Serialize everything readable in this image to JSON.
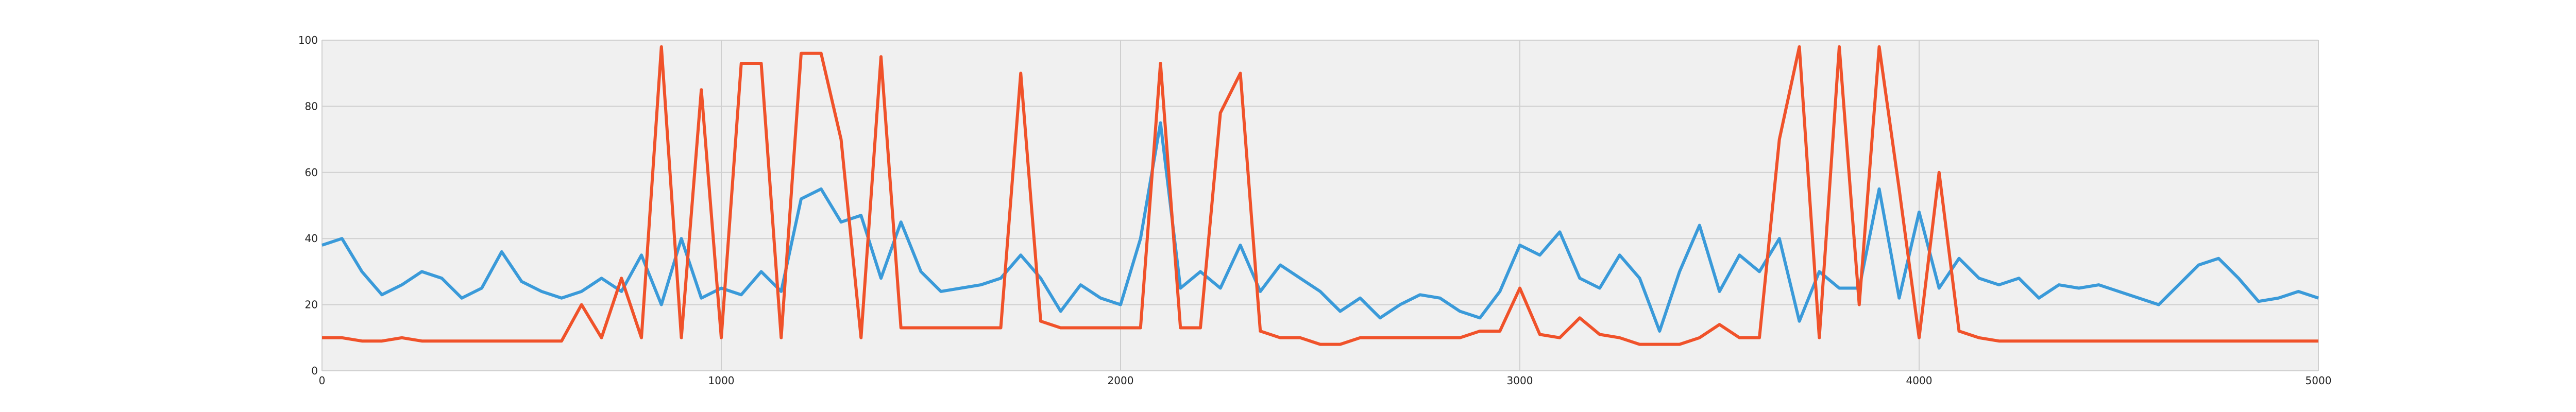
{
  "chart_data": {
    "type": "line",
    "x": [
      0,
      50,
      100,
      150,
      200,
      250,
      300,
      350,
      400,
      450,
      500,
      550,
      600,
      650,
      700,
      750,
      800,
      850,
      900,
      950,
      1000,
      1050,
      1100,
      1150,
      1200,
      1250,
      1300,
      1350,
      1400,
      1450,
      1500,
      1550,
      1600,
      1650,
      1700,
      1750,
      1800,
      1850,
      1900,
      1950,
      2000,
      2050,
      2100,
      2150,
      2200,
      2250,
      2300,
      2350,
      2400,
      2450,
      2500,
      2550,
      2600,
      2650,
      2700,
      2750,
      2800,
      2850,
      2900,
      2950,
      3000,
      3050,
      3100,
      3150,
      3200,
      3250,
      3300,
      3350,
      3400,
      3450,
      3500,
      3550,
      3600,
      3650,
      3700,
      3750,
      3800,
      3850,
      3900,
      3950,
      4000,
      4050,
      4100,
      4150,
      4200,
      4250,
      4300,
      4350,
      4400,
      4450,
      4500,
      4550,
      4600,
      4650,
      4700,
      4750,
      4800,
      4850,
      4900,
      4950,
      5000
    ],
    "series": [
      {
        "color": "#3a9ad9",
        "values": [
          38,
          40,
          30,
          23,
          26,
          30,
          28,
          22,
          25,
          36,
          27,
          24,
          22,
          24,
          28,
          24,
          35,
          20,
          40,
          22,
          25,
          23,
          30,
          24,
          52,
          55,
          45,
          47,
          28,
          45,
          30,
          24,
          25,
          26,
          28,
          35,
          28,
          18,
          26,
          22,
          20,
          40,
          75,
          25,
          30,
          25,
          38,
          24,
          32,
          28,
          24,
          18,
          22,
          16,
          20,
          23,
          22,
          18,
          16,
          24,
          38,
          35,
          42,
          28,
          25,
          35,
          28,
          12,
          30,
          44,
          24,
          35,
          30,
          40,
          15,
          30,
          25,
          25,
          55,
          22,
          48,
          25,
          34,
          28,
          26,
          28,
          22,
          26,
          25,
          26,
          24,
          22,
          20,
          26,
          32,
          34,
          28,
          21,
          22,
          24,
          22
        ]
      },
      {
        "color": "#f0522a",
        "values": [
          10,
          10,
          9,
          9,
          10,
          9,
          9,
          9,
          9,
          9,
          9,
          9,
          9,
          20,
          10,
          28,
          10,
          98,
          10,
          85,
          10,
          93,
          93,
          10,
          96,
          96,
          70,
          10,
          95,
          13,
          13,
          13,
          13,
          13,
          13,
          90,
          15,
          13,
          13,
          13,
          13,
          13,
          93,
          13,
          13,
          78,
          90,
          12,
          10,
          10,
          8,
          8,
          10,
          10,
          10,
          10,
          10,
          10,
          12,
          12,
          25,
          11,
          10,
          16,
          11,
          10,
          8,
          8,
          8,
          10,
          14,
          10,
          10,
          70,
          98,
          10,
          98,
          20,
          98,
          55,
          10,
          60,
          12,
          10,
          9,
          9,
          9,
          9,
          9,
          9,
          9,
          9,
          9,
          9,
          9,
          9,
          9,
          9,
          9,
          9,
          9
        ]
      }
    ],
    "xlim": [
      0,
      5000
    ],
    "ylim": [
      0,
      100
    ],
    "xticks": [
      0,
      1000,
      2000,
      3000,
      4000,
      5000
    ],
    "yticks": [
      0,
      20,
      40,
      60,
      80,
      100
    ],
    "grid": true
  }
}
